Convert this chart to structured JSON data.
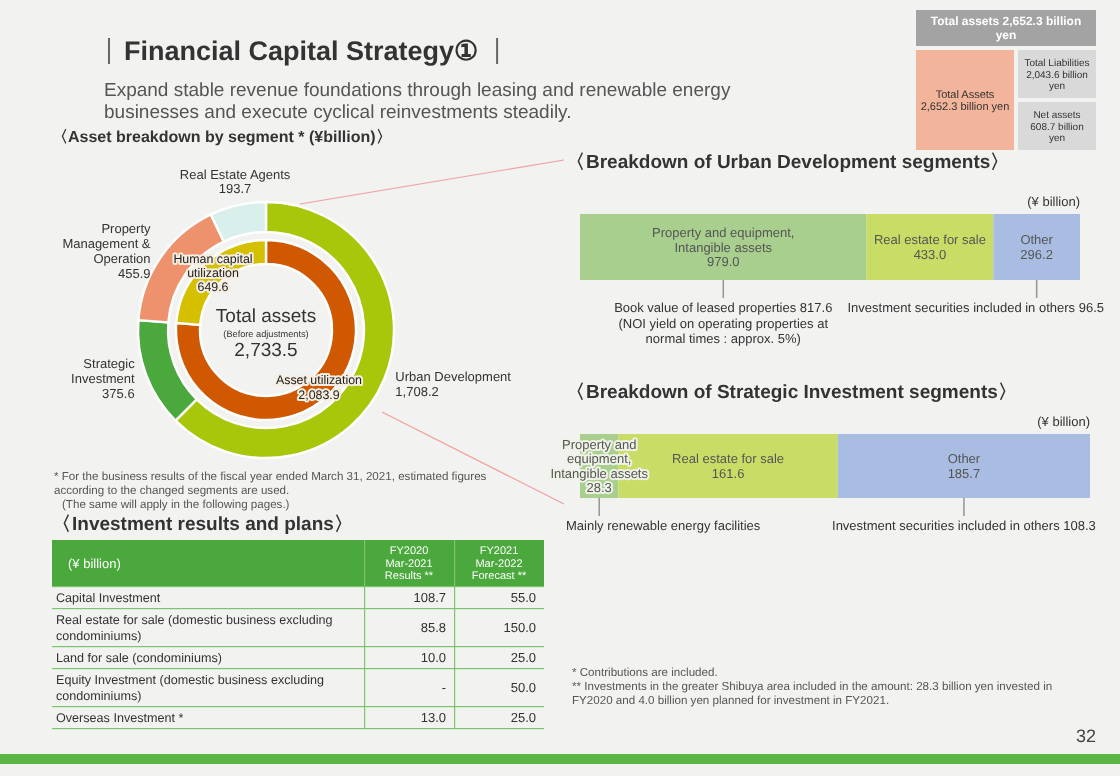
{
  "chart_data": [
    {
      "type": "other",
      "title": "Financial Capital Strategy①",
      "subtitle": "Expand stable revenue foundations through leasing and renewable energy businesses and execute cyclical reinvestments steadily.",
      "annotations": [
        "Total assets 2,652.3 billion yen",
        "Total Assets 2,652.3 billion yen",
        "Total Liabilities 2,043.6 billion yen",
        "Net assets 608.7 billion yen",
        "32"
      ]
    },
    {
      "type": "donut",
      "title": "〈Asset breakdown by segment * (¥billion)〉",
      "categories": [
        "Urban Development",
        "Strategic Investment",
        "Property Management & Operation",
        "Real Estate Agents"
      ],
      "values": [
        1708.2,
        375.6,
        455.9,
        193.7
      ],
      "colors": [
        "#a8c60a",
        "#4aa83c",
        "#ee916d",
        "#d9efeb"
      ],
      "value_labels": [
        "1,708.2",
        "375.6",
        "455.9",
        "193.7"
      ],
      "annotations": [
        "* For the business results of the fiscal year ended March 31, 2021, estimated figures according to the changed segments are used.",
        "(The same will apply in the following pages.)"
      ]
    },
    {
      "type": "donut",
      "categories": [
        "Asset utilization",
        "Human capital utilization"
      ],
      "values": [
        2083.9,
        649.6
      ],
      "colors": [
        "#d05800",
        "#d5c000"
      ],
      "value_labels": [
        "2,083.9",
        "649.6"
      ],
      "annotations": [
        "Total assets",
        "(Before adjustments)",
        "2,733.5"
      ]
    },
    {
      "type": "bar",
      "orientation": "horizontal",
      "stacked": true,
      "title": "〈Breakdown of Urban Development segments〉",
      "xlabel": "(¥ billion)",
      "categories": [
        null
      ],
      "series": [
        {
          "name": "Property and equipment, Intangible assets",
          "color": "#a9cf8f",
          "values": [
            979.0
          ],
          "value_labels": [
            "979.0"
          ]
        },
        {
          "name": "Real estate for sale",
          "color": "#c9dd66",
          "values": [
            433.0
          ],
          "value_labels": [
            "433.0"
          ]
        },
        {
          "name": "Other",
          "color": "#a9bde2",
          "values": [
            296.2
          ],
          "value_labels": [
            "296.2"
          ]
        }
      ],
      "annotations": [
        "Book value of leased properties 817.6 (NOI yield on operating properties at normal times : approx. 5%)",
        "Investment securities included in others 96.5"
      ]
    },
    {
      "type": "bar",
      "orientation": "horizontal",
      "stacked": true,
      "title": "〈Breakdown of Strategic Investment segments〉",
      "xlabel": "(¥ billion)",
      "categories": [
        null
      ],
      "series": [
        {
          "name": "Property and equipment, Intangible assets",
          "color": "#a9cf8f",
          "values": [
            28.3
          ],
          "value_labels": [
            "28.3"
          ]
        },
        {
          "name": "Real estate for sale",
          "color": "#c9dd66",
          "values": [
            161.6
          ],
          "value_labels": [
            "161.6"
          ]
        },
        {
          "name": "Other",
          "color": "#a9bde2",
          "values": [
            185.7
          ],
          "value_labels": [
            "185.7"
          ]
        }
      ],
      "annotations": [
        "Mainly renewable energy facilities",
        "Investment securities included in others 108.3"
      ]
    },
    {
      "type": "other",
      "title": "〈Investment results and plans〉",
      "ylabel": "(¥ billion)",
      "categories": [
        "Capital Investment",
        "Real estate for sale (domestic business excluding condominiums)",
        "Land for sale (condominiums)",
        "Equity Investment (domestic business excluding condominiums)",
        "Overseas Investment *"
      ],
      "series": [
        {
          "name": "FY2020 Mar-2021 Results **",
          "values": [
            108.7,
            85.8,
            10.0,
            null,
            13.0
          ],
          "value_labels": [
            "108.7",
            "85.8",
            "10.0",
            "-",
            "13.0"
          ]
        },
        {
          "name": "FY2021 Mar-2022 Forecast **",
          "values": [
            55.0,
            150.0,
            25.0,
            50.0,
            25.0
          ],
          "value_labels": [
            "55.0",
            "150.0",
            "25.0",
            "50.0",
            "25.0"
          ]
        }
      ],
      "annotations": [
        "* Contributions are included.",
        "** Investments in the greater Shibuya area included in the amount: 28.3 billion yen invested in FY2020 and 4.0 billion yen planned for investment in FY2021."
      ]
    }
  ]
}
